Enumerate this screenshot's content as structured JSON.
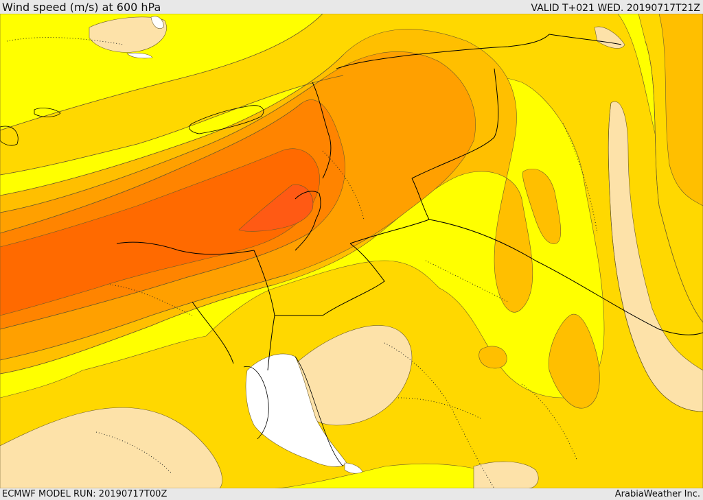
{
  "header": {
    "title": "Wind speed (m/s) at 600 hPa",
    "valid": "VALID T+021 WED. 20190717T21Z"
  },
  "footer": {
    "model_run": "ECMWF MODEL RUN: 20190717T00Z",
    "credit": "ArabiaWeather Inc."
  },
  "map": {
    "colors": {
      "very_light": "#fde2a9",
      "light": "#ffff00",
      "medium": "#ffd800",
      "medium_high": "#ffbf00",
      "high": "#ffa000",
      "very_high": "#ff8400",
      "extreme": "#ff6a00",
      "peak": "#ff5a14",
      "no_data": "#ffffff",
      "contour_line": "#6b5a2a",
      "border_line": "#000000",
      "province_line": "#222222"
    }
  }
}
